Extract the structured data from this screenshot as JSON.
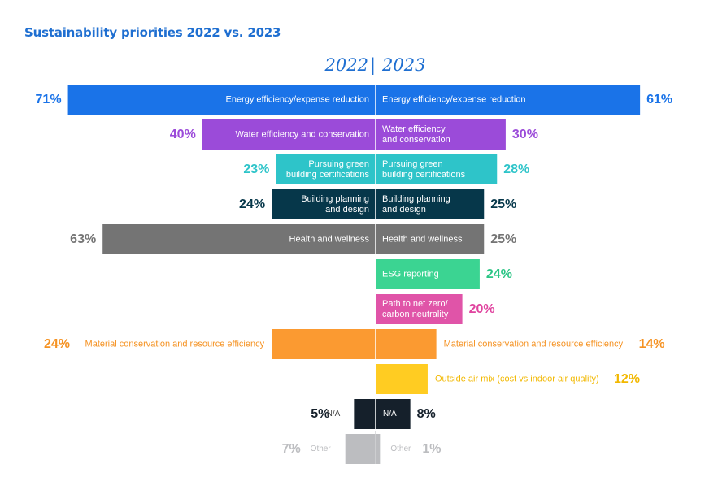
{
  "title": "Sustainability priorities 2022 vs. 2023",
  "years": {
    "left": "2022",
    "separator": "|",
    "right": "2023"
  },
  "chart_data": {
    "type": "bar",
    "orientation": "horizontal-butterfly",
    "title": "Sustainability priorities 2022 vs. 2023",
    "xlabel": "",
    "ylabel": "",
    "series": [
      {
        "name": "2022",
        "side": "left"
      },
      {
        "name": "2023",
        "side": "right"
      }
    ],
    "rows": [
      {
        "left_label": "Energy efficiency/expense reduction",
        "right_label": "Energy efficiency/expense reduction",
        "left_value": 71,
        "right_value": 61,
        "left_text": "71%",
        "right_text": "61%",
        "color": "#1a73e8",
        "label_color": "#1a73e8",
        "labels_inside": true
      },
      {
        "left_label": "Water efficiency and conservation",
        "right_label": "Water efficiency\nand conservation",
        "left_value": 40,
        "right_value": 30,
        "left_text": "40%",
        "right_text": "30%",
        "color": "#9b4bd9",
        "label_color": "#9b4bd9",
        "labels_inside": true
      },
      {
        "left_label": "Pursuing green\nbuilding certifications",
        "right_label": "Pursuing green\nbuilding certifications",
        "left_value": 23,
        "right_value": 28,
        "left_text": "23%",
        "right_text": "28%",
        "color": "#2ec4c9",
        "label_color": "#2ec4c9",
        "labels_inside": true
      },
      {
        "left_label": "Building planning\nand design",
        "right_label": "Building planning\nand design",
        "left_value": 24,
        "right_value": 25,
        "left_text": "24%",
        "right_text": "25%",
        "color": "#06374a",
        "label_color": "#06374a",
        "labels_inside": true
      },
      {
        "left_label": "Health and wellness",
        "right_label": "Health and wellness",
        "left_value": 63,
        "right_value": 25,
        "left_text": "63%",
        "right_text": "25%",
        "color": "#747474",
        "label_color": "#747474",
        "labels_inside": true
      },
      {
        "left_label": "",
        "right_label": "ESG reporting",
        "left_value": null,
        "right_value": 24,
        "left_text": "",
        "right_text": "24%",
        "color": "#3bd492",
        "label_color": "#2bc585",
        "labels_inside": true
      },
      {
        "left_label": "",
        "right_label": "Path to net zero/\ncarbon neutrality",
        "left_value": null,
        "right_value": 20,
        "left_text": "",
        "right_text": "20%",
        "color": "#e054a8",
        "label_color": "#e0449f",
        "labels_inside": true
      },
      {
        "left_label": "Material conservation and resource efficiency",
        "right_label": "Material conservation and resource efficiency",
        "left_value": 24,
        "right_value": 14,
        "left_text": "24%",
        "right_text": "14%",
        "color": "#fb9a31",
        "label_color": "#f59222",
        "labels_inside": false
      },
      {
        "left_label": "",
        "right_label": "Outside air mix (cost vs indoor air quality)",
        "left_value": null,
        "right_value": 12,
        "left_text": "",
        "right_text": "12%",
        "color": "#ffcc22",
        "label_color": "#f2b800",
        "labels_inside": false
      },
      {
        "left_label": "N/A",
        "right_label": "N/A",
        "left_value": 5,
        "right_value": 8,
        "left_text": "5%",
        "right_text": "8%",
        "color": "#15202b",
        "label_color": "#15202b",
        "labels_inside": "right-only"
      },
      {
        "left_label": "Other",
        "right_label": "Other",
        "left_value": 7,
        "right_value": 1,
        "left_text": "7%",
        "right_text": "1%",
        "color": "#bcbdc0",
        "label_color": "#bcbdc0",
        "labels_inside": false
      }
    ]
  }
}
